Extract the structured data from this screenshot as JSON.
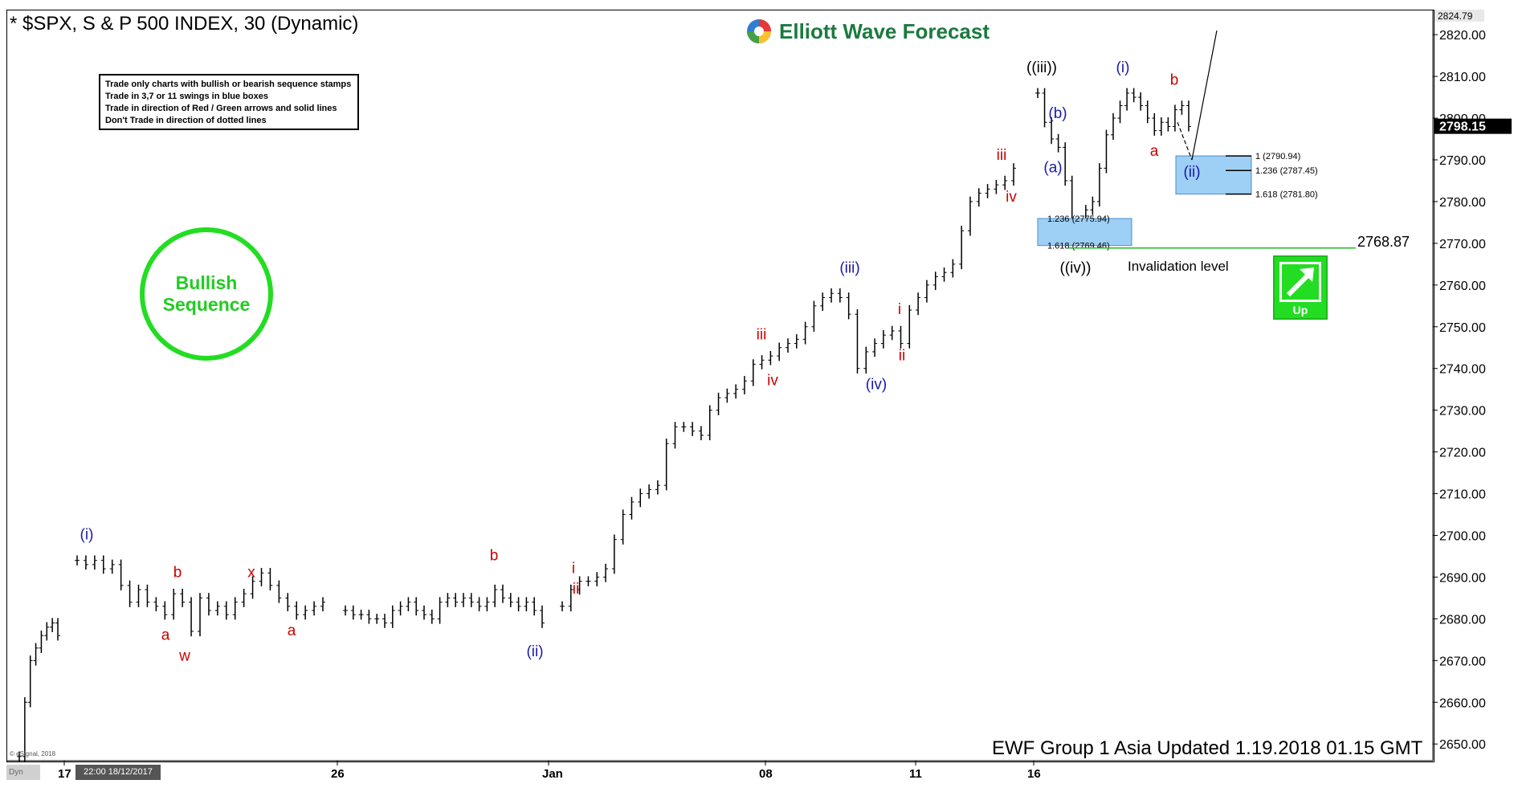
{
  "header": {
    "title": "* $SPX, S & P 500 INDEX, 30 (Dynamic)"
  },
  "brand": {
    "name": "Elliott Wave Forecast",
    "logo_icon": "ewf-globe-icon"
  },
  "rules_box": {
    "lines": [
      "Trade only charts with bullish or bearish sequence stamps",
      "Trade in 3,7 or 11 swings in blue boxes",
      "Trade in direction of Red / Green arrows and solid lines",
      "Don't Trade in direction of dotted lines"
    ]
  },
  "stamp": {
    "line1": "Bullish",
    "line2": "Sequence",
    "color": "#22dd22"
  },
  "footer": {
    "text": "EWF Group 1 Asia Updated 1.19.2018 01.15 GMT"
  },
  "esignal": {
    "text": "© eSignal, 2018"
  },
  "dyn_tag": "Dyn",
  "date_tag": "22:00 18/12/2017",
  "up_label": "Up",
  "chart_data": {
    "type": "ohlc",
    "ylim": [
      2646,
      2826
    ],
    "y_ticks": [
      "2650.00",
      "2660.00",
      "2670.00",
      "2680.00",
      "2690.00",
      "2700.00",
      "2710.00",
      "2720.00",
      "2730.00",
      "2740.00",
      "2750.00",
      "2760.00",
      "2770.00",
      "2780.00",
      "2790.00",
      "2800.00",
      "2810.00",
      "2820.00"
    ],
    "last_price_label": "2824.79",
    "current_price": 2798.15,
    "current_price_label": "2798.15",
    "x_labels": [
      "17",
      "26",
      "Jan",
      "08",
      "11",
      "16"
    ],
    "invalidation": {
      "value": 2768.87,
      "value_label": "2768.87",
      "label": "Invalidation level"
    },
    "fib_boxes": [
      {
        "levels": [
          {
            "ratio": "1.236",
            "value": 2775.94,
            "label": "1.236 (2775.94)"
          },
          {
            "ratio": "1.618",
            "value": 2769.46,
            "label": "1.618 (2769.46)"
          }
        ]
      },
      {
        "levels": [
          {
            "ratio": "1",
            "value": 2790.94,
            "label": "1 (2790.94)"
          },
          {
            "ratio": "1.236",
            "value": 2787.45,
            "label": "1.236 (2787.45)"
          },
          {
            "ratio": "1.618",
            "value": 2781.8,
            "label": "1.618 (2781.80)"
          }
        ]
      }
    ],
    "wave_labels": [
      {
        "text": "(i)",
        "color": "#1a1aaa",
        "value": 2699
      },
      {
        "text": "b",
        "color": "#cc0000",
        "value": 2690
      },
      {
        "text": "a",
        "color": "#cc0000",
        "value": 2675
      },
      {
        "text": "w",
        "color": "#cc0000",
        "value": 2670
      },
      {
        "text": "x",
        "color": "#cc0000",
        "value": 2690
      },
      {
        "text": "a",
        "color": "#cc0000",
        "value": 2676
      },
      {
        "text": "b",
        "color": "#cc0000",
        "value": 2694
      },
      {
        "text": "(ii)",
        "color": "#1a1aaa",
        "value": 2671
      },
      {
        "text": "i",
        "color": "#cc0000",
        "value": 2691
      },
      {
        "text": "ii",
        "color": "#cc0000",
        "value": 2686
      },
      {
        "text": "iii",
        "color": "#cc0000",
        "value": 2747
      },
      {
        "text": "iv",
        "color": "#cc0000",
        "value": 2736
      },
      {
        "text": "(iii)",
        "color": "#1a1aaa",
        "value": 2763
      },
      {
        "text": "(iv)",
        "color": "#1a1aaa",
        "value": 2735
      },
      {
        "text": "i",
        "color": "#cc0000",
        "value": 2753
      },
      {
        "text": "ii",
        "color": "#cc0000",
        "value": 2742
      },
      {
        "text": "iii",
        "color": "#cc0000",
        "value": 2790
      },
      {
        "text": "iv",
        "color": "#cc0000",
        "value": 2780
      },
      {
        "text": "((iii))",
        "color": "#000000",
        "value": 2811
      },
      {
        "text": "(b)",
        "color": "#1a1aaa",
        "value": 2800
      },
      {
        "text": "(a)",
        "color": "#1a1aaa",
        "value": 2787
      },
      {
        "text": "((iv))",
        "color": "#000000",
        "value": 2763
      },
      {
        "text": "(i)",
        "color": "#1a1aaa",
        "value": 2811
      },
      {
        "text": "b",
        "color": "#cc0000",
        "value": 2808
      },
      {
        "text": "a",
        "color": "#cc0000",
        "value": 2791
      },
      {
        "text": "(ii)",
        "color": "#1a1aaa",
        "value": 2786
      }
    ],
    "series": [
      {
        "segment": 1,
        "points": [
          2647,
          2660,
          2670,
          2673,
          2676,
          2678,
          2679,
          2676
        ]
      },
      {
        "segment": 2,
        "points": [
          2694,
          2693,
          2694,
          2692,
          2693,
          2688,
          2684,
          2687,
          2684,
          2683,
          2681,
          2686,
          2684,
          2677,
          2685,
          2682,
          2683,
          2681,
          2684,
          2686,
          2689,
          2691,
          2688,
          2685,
          2683,
          2681,
          2682,
          2683,
          2684
        ]
      },
      {
        "segment": 3,
        "points": [
          2682,
          2681,
          2681,
          2680,
          2680,
          2679,
          2682,
          2683,
          2684,
          2682,
          2681,
          2680,
          2684,
          2685,
          2684,
          2685,
          2684,
          2683,
          2684,
          2687,
          2685,
          2684,
          2683,
          2684,
          2682,
          2679
        ]
      },
      {
        "segment": 4,
        "points": [
          2683,
          2687,
          2689,
          2689,
          2690,
          2692,
          2699,
          2705,
          2708,
          2710,
          2711,
          2712,
          2722,
          2726,
          2726,
          2725,
          2724,
          2730,
          2733,
          2734,
          2735,
          2737,
          2741,
          2742,
          2743,
          2745,
          2746,
          2747,
          2750,
          2755,
          2757,
          2758,
          2757,
          2753,
          2740,
          2744,
          2746,
          2748,
          2749,
          2746,
          2754,
          2757,
          2760,
          2762,
          2763,
          2765,
          2773,
          2780,
          2782,
          2783,
          2784,
          2785,
          2788
        ]
      },
      {
        "segment": 5,
        "points": [
          2806,
          2799,
          2795,
          2793,
          2785,
          2775,
          2775,
          2778,
          2780,
          2788,
          2796,
          2800,
          2803,
          2806,
          2805,
          2803,
          2800,
          2797,
          2799,
          2798,
          2802,
          2803,
          2798
        ]
      }
    ]
  }
}
